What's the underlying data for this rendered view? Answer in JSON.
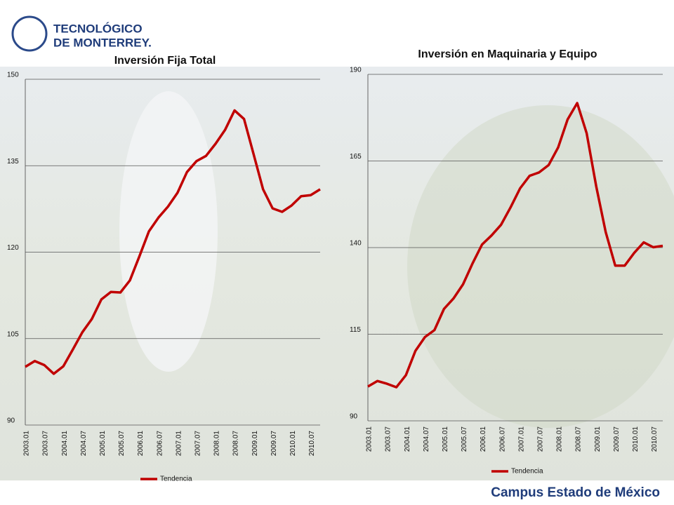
{
  "header": {
    "logo_line1": "TECNOLÓGICO",
    "logo_line2": "DE MONTERREY."
  },
  "footer": "Campus Estado de México",
  "chart_data": [
    {
      "type": "line",
      "title": "Inversión Fija Total",
      "categories": [
        "2003.01",
        null,
        "2003.07",
        null,
        "2004.01",
        null,
        "2004.07",
        null,
        "2005.01",
        null,
        "2005.07",
        null,
        "2006.01",
        null,
        "2006.07",
        null,
        "2007.01",
        null,
        "2007.07",
        null,
        "2008.01",
        null,
        "2008.07",
        null,
        "2009.01",
        null,
        "2009.07",
        null,
        "2010.01",
        null,
        "2010.07",
        null
      ],
      "series": [
        {
          "name": "Tendencia",
          "color": "#c00000",
          "values": [
            100.1,
            101.1,
            100.4,
            98.9,
            100.2,
            103.1,
            106.1,
            108.4,
            111.8,
            113.1,
            113.0,
            115.1,
            119.3,
            123.6,
            126.0,
            127.9,
            130.3,
            133.9,
            135.8,
            136.7,
            138.8,
            141.2,
            144.6,
            143.1,
            137.0,
            130.9,
            127.6,
            127.0,
            128.1,
            129.7,
            129.9,
            130.9
          ]
        }
      ],
      "ylim": [
        90,
        150
      ],
      "yticks": [
        90,
        105,
        120,
        135,
        150
      ],
      "grid": true,
      "legend": "bottom"
    },
    {
      "type": "line",
      "title": "Inversión en Maquinaria y Equipo",
      "categories": [
        "2003.01",
        null,
        "2003.07",
        null,
        "2004.01",
        null,
        "2004.07",
        null,
        "2005.01",
        null,
        "2005.07",
        null,
        "2006.01",
        null,
        "2006.07",
        null,
        "2007.01",
        null,
        "2007.07",
        null,
        "2008.01",
        null,
        "2008.07",
        null,
        "2009.01",
        null,
        "2009.07",
        null,
        "2010.01",
        null,
        "2010.07",
        null
      ],
      "series": [
        {
          "name": "Tendencia",
          "color": "#c00000",
          "values": [
            99.9,
            101.5,
            100.7,
            99.7,
            103.2,
            110.2,
            114.2,
            116.2,
            122.3,
            125.3,
            129.4,
            135.4,
            140.9,
            143.5,
            146.6,
            151.6,
            157.1,
            160.7,
            161.7,
            163.8,
            168.9,
            177.0,
            181.7,
            173.0,
            157.7,
            144.5,
            134.8,
            134.8,
            138.5,
            141.5,
            140.1,
            140.5
          ]
        }
      ],
      "ylim": [
        90,
        190
      ],
      "yticks": [
        90,
        115,
        140,
        165,
        190
      ],
      "grid": true,
      "legend": "bottom"
    }
  ]
}
